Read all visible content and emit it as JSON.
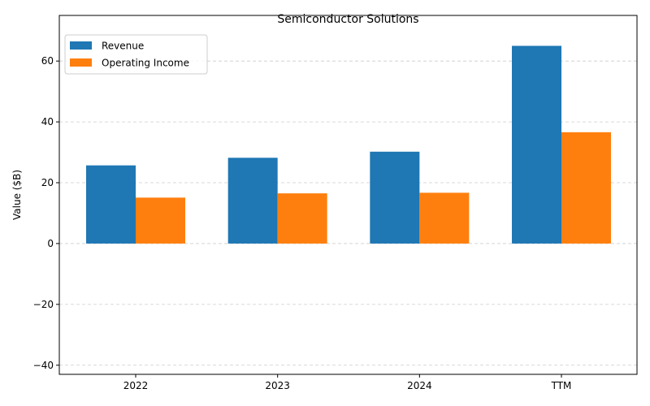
{
  "chart_data": {
    "type": "bar",
    "title": "Semiconductor Solutions",
    "xlabel": "",
    "ylabel": "Value ($B)",
    "categories": [
      "2022",
      "2023",
      "2024",
      "TTM"
    ],
    "series": [
      {
        "name": "Revenue",
        "values": [
          25.7,
          28.2,
          30.2,
          65.0
        ],
        "color": "#1f77b4"
      },
      {
        "name": "Operating Income",
        "values": [
          15.1,
          16.5,
          16.7,
          36.6
        ],
        "color": "#ff7f0e"
      }
    ],
    "ylim": [
      -43,
      75
    ],
    "yticks": [
      -40,
      -20,
      0,
      20,
      40,
      60
    ],
    "ytick_labels": [
      "−40",
      "−20",
      "0",
      "20",
      "40",
      "60"
    ],
    "grid": true,
    "legend_position": "top-left"
  }
}
